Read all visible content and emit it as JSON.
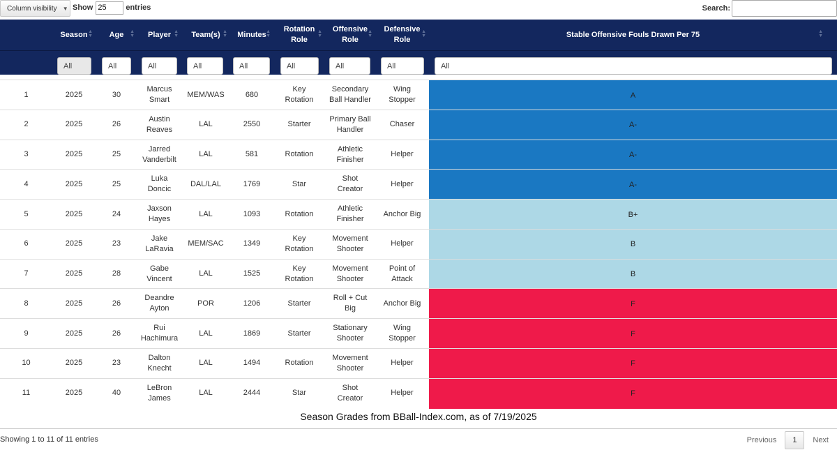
{
  "toolbar": {
    "column_visibility_label": "Column visibility",
    "show_label": "Show",
    "length_value": "25",
    "entries_label": "entries",
    "search_label": "Search:",
    "search_value": ""
  },
  "columns": [
    {
      "key": "idx",
      "label": ""
    },
    {
      "key": "season",
      "label": "Season"
    },
    {
      "key": "age",
      "label": "Age"
    },
    {
      "key": "player",
      "label": "Player"
    },
    {
      "key": "teams",
      "label": "Team(s)"
    },
    {
      "key": "minutes",
      "label": "Minutes"
    },
    {
      "key": "rotation_role",
      "label": "Rotation Role"
    },
    {
      "key": "offensive_role",
      "label": "Offensive Role"
    },
    {
      "key": "defensive_role",
      "label": "Defensive Role"
    },
    {
      "key": "grade",
      "label": "Stable Offensive Fouls Drawn Per 75"
    }
  ],
  "filters": [
    "All",
    "All",
    "All",
    "All",
    "All",
    "All",
    "All",
    "All",
    "All"
  ],
  "grade_colors": {
    "A": "#1a78c2",
    "A-": "#1a78c2",
    "B+": "#add8e6",
    "B": "#add8e6",
    "F": "#ef1a4a"
  },
  "rows": [
    {
      "idx": "1",
      "season": "2025",
      "age": "30",
      "player": "Marcus Smart",
      "teams": "MEM/WAS",
      "minutes": "680",
      "rotation_role": "Key Rotation",
      "offensive_role": "Secondary Ball Handler",
      "defensive_role": "Wing Stopper",
      "grade": "A"
    },
    {
      "idx": "2",
      "season": "2025",
      "age": "26",
      "player": "Austin Reaves",
      "teams": "LAL",
      "minutes": "2550",
      "rotation_role": "Starter",
      "offensive_role": "Primary Ball Handler",
      "defensive_role": "Chaser",
      "grade": "A-"
    },
    {
      "idx": "3",
      "season": "2025",
      "age": "25",
      "player": "Jarred Vanderbilt",
      "teams": "LAL",
      "minutes": "581",
      "rotation_role": "Rotation",
      "offensive_role": "Athletic Finisher",
      "defensive_role": "Helper",
      "grade": "A-"
    },
    {
      "idx": "4",
      "season": "2025",
      "age": "25",
      "player": "Luka Doncic",
      "teams": "DAL/LAL",
      "minutes": "1769",
      "rotation_role": "Star",
      "offensive_role": "Shot Creator",
      "defensive_role": "Helper",
      "grade": "A-"
    },
    {
      "idx": "5",
      "season": "2025",
      "age": "24",
      "player": "Jaxson Hayes",
      "teams": "LAL",
      "minutes": "1093",
      "rotation_role": "Rotation",
      "offensive_role": "Athletic Finisher",
      "defensive_role": "Anchor Big",
      "grade": "B+"
    },
    {
      "idx": "6",
      "season": "2025",
      "age": "23",
      "player": "Jake LaRavia",
      "teams": "MEM/SAC",
      "minutes": "1349",
      "rotation_role": "Key Rotation",
      "offensive_role": "Movement Shooter",
      "defensive_role": "Helper",
      "grade": "B"
    },
    {
      "idx": "7",
      "season": "2025",
      "age": "28",
      "player": "Gabe Vincent",
      "teams": "LAL",
      "minutes": "1525",
      "rotation_role": "Key Rotation",
      "offensive_role": "Movement Shooter",
      "defensive_role": "Point of Attack",
      "grade": "B"
    },
    {
      "idx": "8",
      "season": "2025",
      "age": "26",
      "player": "Deandre Ayton",
      "teams": "POR",
      "minutes": "1206",
      "rotation_role": "Starter",
      "offensive_role": "Roll + Cut Big",
      "defensive_role": "Anchor Big",
      "grade": "F"
    },
    {
      "idx": "9",
      "season": "2025",
      "age": "26",
      "player": "Rui Hachimura",
      "teams": "LAL",
      "minutes": "1869",
      "rotation_role": "Starter",
      "offensive_role": "Stationary Shooter",
      "defensive_role": "Wing Stopper",
      "grade": "F"
    },
    {
      "idx": "10",
      "season": "2025",
      "age": "23",
      "player": "Dalton Knecht",
      "teams": "LAL",
      "minutes": "1494",
      "rotation_role": "Rotation",
      "offensive_role": "Movement Shooter",
      "defensive_role": "Helper",
      "grade": "F"
    },
    {
      "idx": "11",
      "season": "2025",
      "age": "40",
      "player": "LeBron James",
      "teams": "LAL",
      "minutes": "2444",
      "rotation_role": "Star",
      "offensive_role": "Shot Creator",
      "defensive_role": "Helper",
      "grade": "F"
    }
  ],
  "caption": "Season Grades from BBall-Index.com, as of 7/19/2025",
  "footer": {
    "info": "Showing 1 to 11 of 11 entries",
    "previous_label": "Previous",
    "current_page": "1",
    "next_label": "Next"
  }
}
